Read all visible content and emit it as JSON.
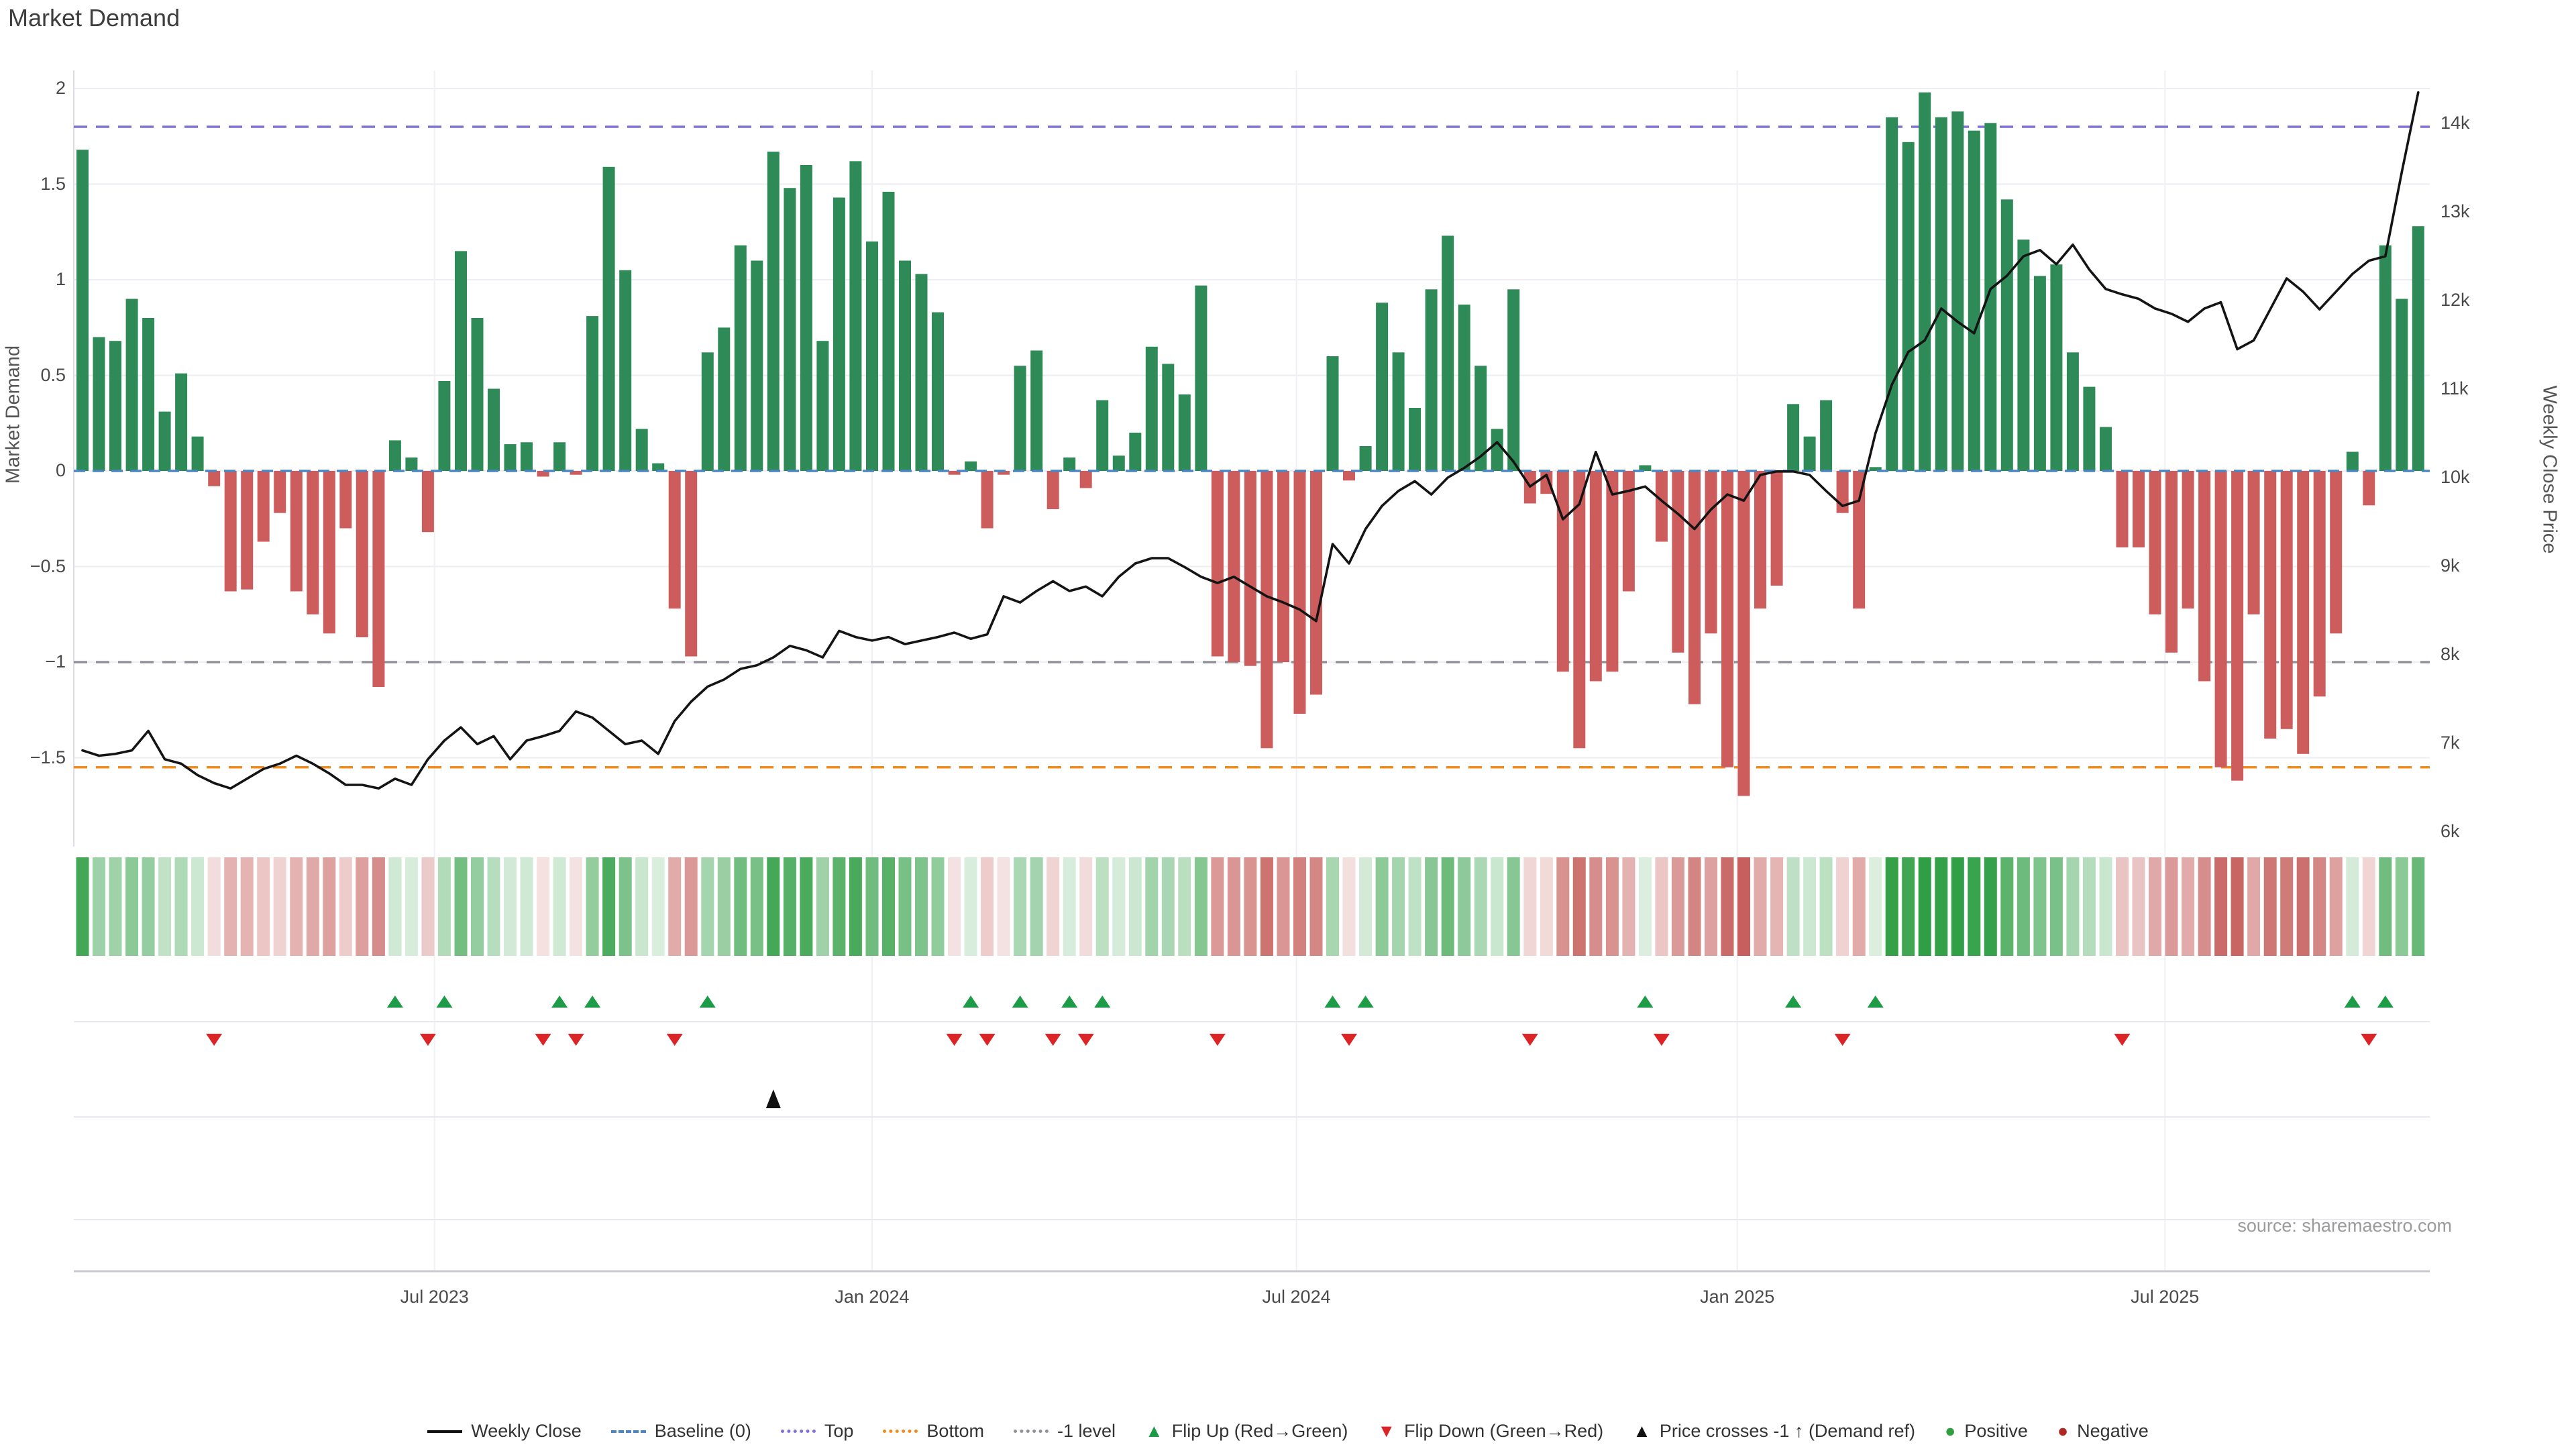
{
  "title": "Market Demand",
  "source": "source: sharemaestro.com",
  "left_axis": {
    "title": "Market Demand",
    "ticks": [
      {
        "label": "2",
        "value": 2
      },
      {
        "label": "1.5",
        "value": 1.5
      },
      {
        "label": "1",
        "value": 1
      },
      {
        "label": "0.5",
        "value": 0.5
      },
      {
        "label": "0",
        "value": 0
      },
      {
        "label": "−0.5",
        "value": -0.5
      },
      {
        "label": "−1",
        "value": -1
      },
      {
        "label": "−1.5",
        "value": -1.5
      }
    ]
  },
  "right_axis": {
    "title": "Weekly Close Price",
    "ticks": [
      {
        "label": "14k",
        "value": 14
      },
      {
        "label": "13k",
        "value": 13
      },
      {
        "label": "12k",
        "value": 12
      },
      {
        "label": "11k",
        "value": 11
      },
      {
        "label": "10k",
        "value": 10
      },
      {
        "label": "9k",
        "value": 9
      },
      {
        "label": "8k",
        "value": 8
      },
      {
        "label": "7k",
        "value": 7
      },
      {
        "label": "6k",
        "value": 6
      }
    ]
  },
  "x_axis": {
    "ticks": [
      {
        "label": "Jul 2023",
        "index": 21.4
      },
      {
        "label": "Jan 2024",
        "index": 48.0
      },
      {
        "label": "Jul 2024",
        "index": 73.8
      },
      {
        "label": "Jan 2025",
        "index": 100.6
      },
      {
        "label": "Jul 2025",
        "index": 126.6
      }
    ]
  },
  "chart_data": {
    "type": "bar",
    "title": "Market Demand",
    "ylabel_left": "Market Demand",
    "ylabel_right": "Weekly Close Price",
    "ylim_demand": [
      -1.9,
      2.1
    ],
    "ylim_price": [
      5.6,
      14.6
    ],
    "grid": true,
    "series": [
      {
        "name": "Market Demand (weekly bars)",
        "type": "bar",
        "axis": "demand",
        "values": [
          1.68,
          0.7,
          0.68,
          0.9,
          0.8,
          0.31,
          0.51,
          0.18,
          -0.08,
          -0.63,
          -0.62,
          -0.37,
          -0.22,
          -0.63,
          -0.75,
          -0.85,
          -0.3,
          -0.87,
          -1.13,
          0.16,
          0.07,
          -0.32,
          0.47,
          1.15,
          0.8,
          0.43,
          0.14,
          0.15,
          -0.03,
          0.15,
          -0.02,
          0.81,
          1.59,
          1.05,
          0.22,
          0.04,
          -0.72,
          -0.97,
          0.62,
          0.75,
          1.18,
          1.1,
          1.67,
          1.48,
          1.6,
          0.68,
          1.43,
          1.62,
          1.2,
          1.46,
          1.1,
          1.03,
          0.83,
          -0.02,
          0.05,
          -0.3,
          -0.02,
          0.55,
          0.63,
          -0.2,
          0.07,
          -0.09,
          0.37,
          0.08,
          0.2,
          0.65,
          0.56,
          0.4,
          0.97,
          -0.97,
          -1.0,
          -1.02,
          -1.45,
          -1.0,
          -1.27,
          -1.17,
          0.6,
          -0.05,
          0.13,
          0.88,
          0.62,
          0.33,
          0.95,
          1.23,
          0.87,
          0.55,
          0.22,
          0.95,
          -0.17,
          -0.12,
          -1.05,
          -1.45,
          -1.1,
          -1.05,
          -0.63,
          0.03,
          -0.37,
          -0.95,
          -1.22,
          -0.85,
          -1.55,
          -1.7,
          -0.72,
          -0.6,
          0.35,
          0.18,
          0.37,
          -0.22,
          -0.72,
          0.02,
          1.85,
          1.72,
          1.98,
          1.85,
          1.88,
          1.78,
          1.82,
          1.42,
          1.21,
          1.02,
          1.08,
          0.62,
          0.44,
          0.23,
          -0.4,
          -0.4,
          -0.75,
          -0.95,
          -0.72,
          -1.1,
          -1.55,
          -1.62,
          -0.75,
          -1.4,
          -1.35,
          -1.48,
          -1.18,
          -0.85,
          0.1,
          -0.18,
          1.18,
          0.9,
          1.28
        ]
      },
      {
        "name": "Weekly Close",
        "type": "line",
        "axis": "price",
        "values": [
          6.92,
          6.86,
          6.88,
          6.92,
          7.14,
          6.82,
          6.77,
          6.64,
          6.55,
          6.49,
          6.6,
          6.71,
          6.77,
          6.86,
          6.77,
          6.66,
          6.53,
          6.53,
          6.49,
          6.6,
          6.53,
          6.82,
          7.03,
          7.18,
          6.99,
          7.08,
          6.82,
          7.03,
          7.08,
          7.14,
          7.36,
          7.29,
          7.14,
          6.99,
          7.03,
          6.88,
          7.25,
          7.47,
          7.64,
          7.72,
          7.84,
          7.88,
          7.97,
          8.1,
          8.05,
          7.97,
          8.27,
          8.2,
          8.16,
          8.2,
          8.12,
          8.16,
          8.2,
          8.25,
          8.18,
          8.23,
          8.66,
          8.59,
          8.72,
          8.83,
          8.72,
          8.77,
          8.66,
          8.88,
          9.03,
          9.09,
          9.09,
          8.99,
          8.88,
          8.81,
          8.88,
          8.77,
          8.66,
          8.59,
          8.51,
          8.38,
          9.25,
          9.03,
          9.42,
          9.68,
          9.85,
          9.96,
          9.81,
          10.0,
          10.11,
          10.24,
          10.4,
          10.18,
          9.9,
          10.03,
          9.53,
          9.7,
          10.29,
          9.81,
          9.85,
          9.9,
          9.74,
          9.59,
          9.42,
          9.64,
          9.81,
          9.74,
          10.03,
          10.07,
          10.07,
          10.03,
          9.85,
          9.68,
          9.74,
          10.5,
          11.05,
          11.42,
          11.55,
          11.91,
          11.76,
          11.63,
          12.13,
          12.28,
          12.5,
          12.57,
          12.41,
          12.63,
          12.35,
          12.13,
          12.07,
          12.02,
          11.91,
          11.85,
          11.76,
          11.91,
          11.98,
          11.45,
          11.55,
          11.9,
          12.25,
          12.1,
          11.9,
          12.1,
          12.3,
          12.45,
          12.5,
          13.45,
          14.35
        ]
      }
    ],
    "reference_lines": {
      "baseline": 0,
      "top": 1.8,
      "bottom": -1.55,
      "minus_one_level": -1.0
    },
    "markers": {
      "flip_up_indices": [
        19,
        22,
        29,
        31,
        38,
        54,
        57,
        60,
        62,
        76,
        78,
        95,
        104,
        109,
        138,
        140
      ],
      "flip_down_indices": [
        8,
        21,
        28,
        30,
        36,
        53,
        55,
        59,
        61,
        69,
        77,
        88,
        96,
        107,
        124,
        139
      ],
      "price_cross_index": 42
    },
    "heatmap_note": "strip below chart mirrors bar values; green=positive, red=negative, intensity scales with magnitude"
  },
  "legend": [
    {
      "label": "Weekly Close",
      "swatch": "line",
      "color": "#111111"
    },
    {
      "label": "Baseline (0)",
      "swatch": "dashed",
      "color": "#4c86c2"
    },
    {
      "label": "Top",
      "swatch": "dotted",
      "color": "#7e72d9"
    },
    {
      "label": "Bottom",
      "swatch": "dotted",
      "color": "#f08c1e"
    },
    {
      "label": "-1 level",
      "swatch": "dotted",
      "color": "#91919b"
    },
    {
      "label": "Flip Up (Red→Green)",
      "swatch": "triangle-up",
      "color": "#1d9b46"
    },
    {
      "label": "Flip Down (Green→Red)",
      "swatch": "triangle-down",
      "color": "#dc2427"
    },
    {
      "label": "Price crosses -1 ↑ (Demand ref)",
      "swatch": "triangle-up",
      "color": "#111111"
    },
    {
      "label": "Positive",
      "swatch": "circle",
      "color": "#2e9e3e"
    },
    {
      "label": "Negative",
      "swatch": "circle",
      "color": "#b02824"
    }
  ],
  "colors": {
    "bar_positive": "#2e8b57",
    "bar_negative": "#cd5c5c",
    "price_line": "#141414",
    "baseline": "#4c86c2",
    "top_line": "#7e72d9",
    "bottom_line": "#f08c1e",
    "minus_one_line": "#91919b",
    "flip_up": "#1d9b46",
    "flip_down": "#dc2427",
    "price_cross": "#111111",
    "heat_positive": "#2f9e44",
    "heat_negative": "#c0504d",
    "gridline": "#ededf3",
    "gridline_vertical": "#f0f0f5",
    "gridline_lower": "#e8e8ee",
    "axis_line": "#c9c9d2",
    "spine": "#dcdce4"
  }
}
